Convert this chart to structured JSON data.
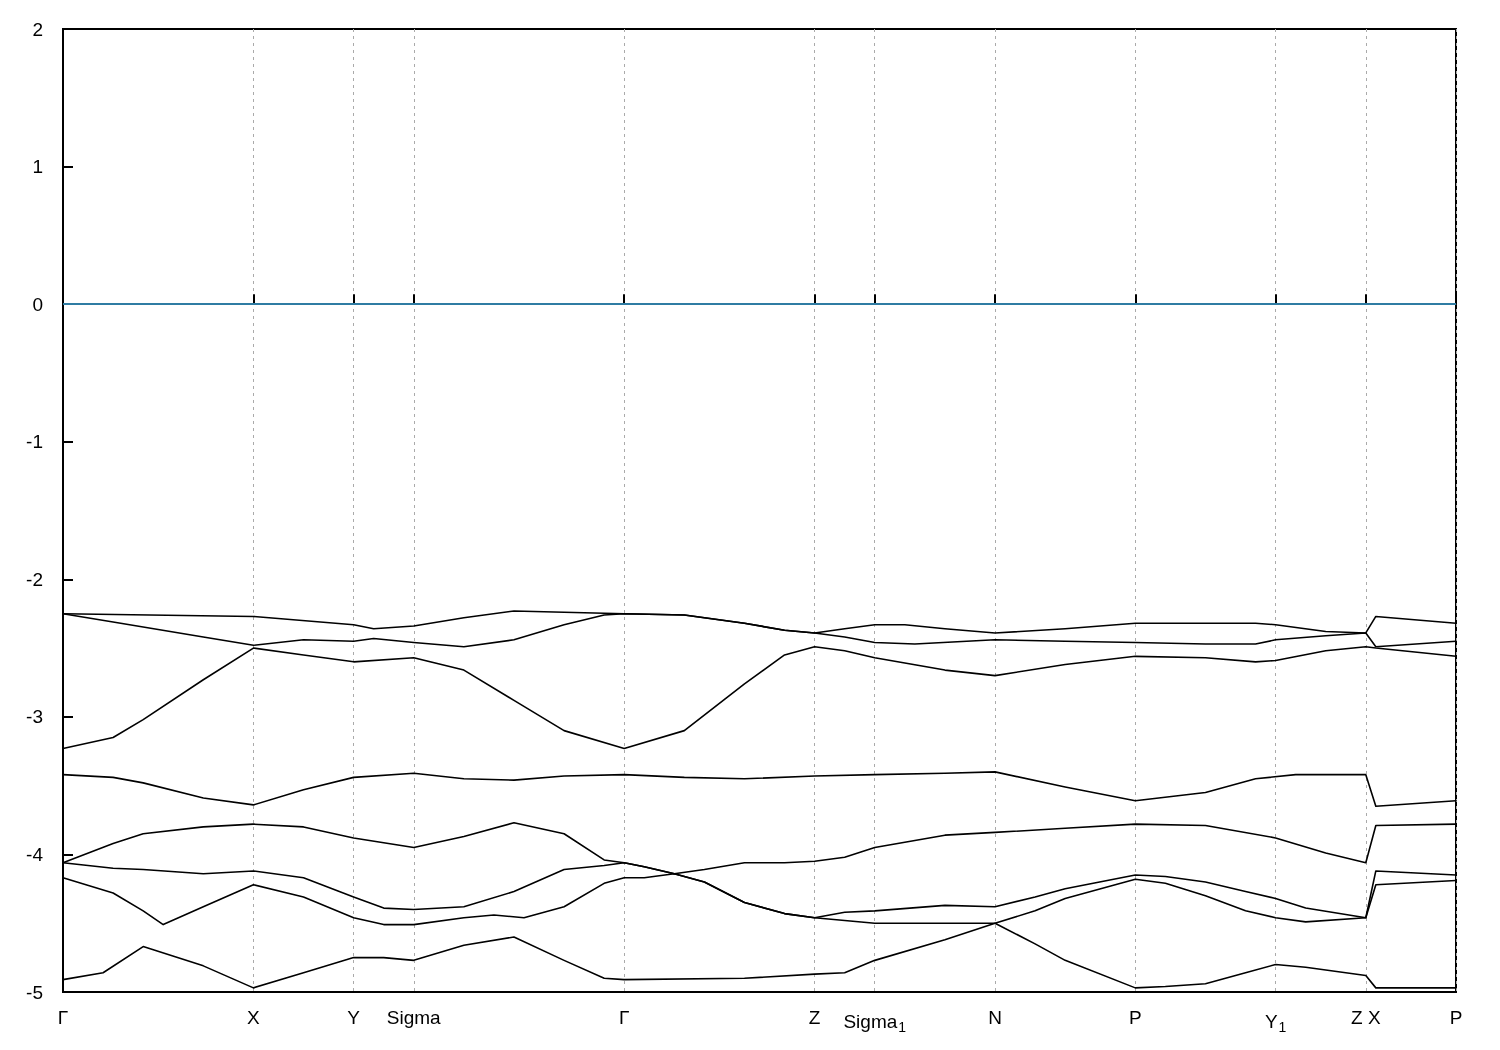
{
  "chart_data": {
    "type": "line",
    "ylim": [
      -5,
      2
    ],
    "categories": [
      "Γ",
      null,
      null,
      null,
      null,
      null,
      null,
      null,
      null,
      null,
      null,
      null,
      null,
      null,
      null,
      null,
      null,
      null,
      null,
      "X",
      null,
      null,
      null,
      null,
      null,
      null,
      null,
      null,
      null,
      "Y",
      null,
      null,
      null,
      null,
      null,
      "Sigma",
      null,
      null,
      null,
      null,
      null,
      null,
      null,
      null,
      null,
      null,
      null,
      null,
      null,
      null,
      null,
      null,
      null,
      null,
      null,
      null,
      "Γ",
      null,
      null,
      null,
      null,
      null,
      null,
      null,
      null,
      null,
      null,
      null,
      null,
      null,
      null,
      null,
      null,
      null,
      null,
      "Z",
      null,
      null,
      null,
      null,
      null,
      "Sigma$_{1}$",
      null,
      null,
      null,
      null,
      null,
      null,
      null,
      null,
      null,
      null,
      null,
      "N",
      null,
      null,
      null,
      null,
      null,
      null,
      null,
      null,
      null,
      null,
      null,
      null,
      null,
      "P",
      null,
      null,
      null,
      null,
      null,
      null,
      null,
      null,
      null,
      null,
      null,
      null,
      null,
      "Y$_{1}$",
      null,
      null,
      null,
      null,
      null,
      null,
      null,
      null,
      "Z X",
      null,
      null,
      null,
      null,
      null,
      null,
      null,
      null,
      "P"
    ],
    "yticks": [
      -5,
      -4,
      -3,
      -2,
      -1,
      0,
      1,
      2
    ],
    "grid": "x",
    "marker": "none",
    "line_style": "solid",
    "ref_lines": [
      {
        "axis": "y",
        "value": 0,
        "color": "#3fa6da"
      }
    ],
    "series": [
      {
        "color": "#000000",
        "values": [
          -2.25,
          null,
          null,
          null,
          null,
          null,
          null,
          null,
          null,
          null,
          null,
          null,
          null,
          null,
          null,
          null,
          null,
          null,
          null,
          -2.27,
          null,
          null,
          null,
          null,
          null,
          null,
          null,
          null,
          null,
          -2.33,
          null,
          -2.36,
          null,
          null,
          null,
          -2.34,
          null,
          null,
          null,
          null,
          -2.28,
          null,
          null,
          null,
          null,
          -2.23,
          null,
          null,
          null,
          null,
          -2.24,
          null,
          null,
          null,
          null,
          null,
          -2.25,
          null,
          null,
          null,
          null,
          null,
          -2.26,
          null,
          null,
          null,
          null,
          null,
          -2.32,
          null,
          null,
          null,
          -2.37,
          null,
          null,
          -2.39,
          null,
          null,
          -2.36,
          null,
          null,
          -2.33,
          null,
          null,
          -2.33,
          null,
          null,
          null,
          -2.36,
          null,
          null,
          null,
          null,
          -2.39,
          null,
          null,
          null,
          null,
          null,
          null,
          -2.36,
          null,
          null,
          null,
          null,
          null,
          null,
          -2.32,
          null,
          null,
          null,
          null,
          null,
          null,
          -2.32,
          null,
          null,
          null,
          null,
          -2.32,
          null,
          -2.33,
          null,
          null,
          null,
          null,
          -2.38,
          null,
          null,
          null,
          -2.39,
          -2.27,
          null,
          null,
          null,
          null,
          null,
          null,
          null,
          -2.32
        ]
      },
      {
        "color": "#000000",
        "values": [
          -2.25,
          null,
          null,
          null,
          null,
          -2.31,
          null,
          null,
          null,
          null,
          null,
          null,
          null,
          null,
          -2.42,
          null,
          null,
          null,
          null,
          -2.48,
          null,
          null,
          null,
          null,
          -2.44,
          null,
          null,
          null,
          null,
          -2.45,
          null,
          -2.43,
          null,
          null,
          null,
          -2.46,
          null,
          null,
          null,
          null,
          -2.49,
          null,
          null,
          null,
          null,
          -2.44,
          null,
          null,
          null,
          null,
          -2.33,
          null,
          null,
          null,
          -2.26,
          null,
          -2.25,
          null,
          null,
          null,
          null,
          null,
          -2.26,
          null,
          null,
          null,
          null,
          null,
          -2.32,
          null,
          null,
          null,
          -2.37,
          null,
          null,
          -2.39,
          null,
          null,
          -2.42,
          null,
          null,
          -2.46,
          null,
          null,
          null,
          -2.47,
          null,
          null,
          null,
          null,
          null,
          null,
          null,
          -2.44,
          null,
          null,
          null,
          null,
          null,
          null,
          -2.45,
          null,
          null,
          null,
          null,
          null,
          null,
          -2.46,
          null,
          null,
          null,
          null,
          null,
          null,
          -2.47,
          null,
          null,
          null,
          null,
          -2.47,
          null,
          -2.44,
          null,
          null,
          null,
          null,
          -2.41,
          null,
          null,
          null,
          -2.39,
          -2.49,
          null,
          null,
          null,
          null,
          null,
          null,
          null,
          -2.45
        ]
      },
      {
        "color": "#000000",
        "values": [
          -3.23,
          null,
          null,
          null,
          null,
          -3.15,
          null,
          null,
          -3.02,
          null,
          null,
          null,
          null,
          null,
          -2.73,
          null,
          null,
          null,
          null,
          -2.5,
          null,
          null,
          null,
          null,
          -2.55,
          null,
          null,
          null,
          null,
          -2.6,
          null,
          null,
          null,
          null,
          null,
          -2.57,
          null,
          null,
          null,
          null,
          -2.66,
          null,
          null,
          null,
          null,
          -2.88,
          null,
          null,
          null,
          null,
          -3.1,
          null,
          null,
          null,
          null,
          null,
          -3.23,
          null,
          null,
          null,
          null,
          null,
          -3.1,
          null,
          null,
          null,
          null,
          null,
          -2.76,
          null,
          null,
          null,
          -2.55,
          null,
          null,
          -2.49,
          null,
          null,
          -2.52,
          null,
          null,
          -2.57,
          null,
          null,
          null,
          null,
          null,
          null,
          -2.66,
          null,
          null,
          null,
          null,
          -2.7,
          null,
          null,
          null,
          null,
          null,
          null,
          -2.62,
          null,
          null,
          null,
          null,
          null,
          null,
          -2.56,
          null,
          null,
          null,
          null,
          null,
          null,
          -2.57,
          null,
          null,
          null,
          null,
          -2.6,
          null,
          -2.59,
          null,
          null,
          null,
          null,
          -2.52,
          null,
          null,
          null,
          -2.49,
          -2.5,
          null,
          null,
          null,
          null,
          null,
          null,
          null,
          -2.56
        ]
      },
      {
        "color": "#000000",
        "values": [
          -3.42,
          null,
          null,
          null,
          null,
          -3.44,
          null,
          null,
          -3.48,
          null,
          null,
          null,
          null,
          null,
          -3.59,
          null,
          null,
          null,
          null,
          -3.64,
          null,
          null,
          null,
          null,
          -3.53,
          null,
          null,
          null,
          null,
          -3.44,
          null,
          null,
          null,
          null,
          null,
          -3.41,
          null,
          null,
          null,
          null,
          -3.45,
          null,
          null,
          null,
          null,
          -3.46,
          null,
          null,
          null,
          null,
          -3.43,
          null,
          null,
          null,
          null,
          null,
          -3.42,
          null,
          null,
          null,
          null,
          null,
          -3.44,
          null,
          null,
          null,
          null,
          null,
          -3.45,
          null,
          null,
          null,
          null,
          null,
          null,
          -3.43,
          null,
          null,
          null,
          null,
          null,
          -3.42,
          null,
          null,
          null,
          null,
          null,
          null,
          -3.41,
          null,
          null,
          null,
          null,
          -3.4,
          null,
          null,
          null,
          null,
          null,
          null,
          -3.51,
          null,
          null,
          null,
          null,
          null,
          null,
          -3.61,
          null,
          null,
          null,
          null,
          null,
          null,
          -3.55,
          null,
          null,
          null,
          null,
          -3.45,
          null,
          null,
          null,
          -3.42,
          null,
          null,
          null,
          null,
          null,
          null,
          -3.42,
          -3.65,
          null,
          null,
          null,
          null,
          null,
          null,
          null,
          -3.61
        ]
      },
      {
        "color": "#000000",
        "values": [
          -4.06,
          null,
          null,
          null,
          null,
          -3.92,
          null,
          null,
          -3.85,
          null,
          null,
          null,
          null,
          null,
          -3.8,
          null,
          null,
          null,
          null,
          -3.78,
          null,
          null,
          null,
          null,
          -3.8,
          null,
          null,
          null,
          null,
          -3.88,
          null,
          null,
          null,
          null,
          null,
          -3.95,
          null,
          null,
          null,
          null,
          -3.87,
          null,
          null,
          null,
          null,
          -3.77,
          null,
          null,
          null,
          null,
          -3.85,
          null,
          null,
          null,
          -4.04,
          null,
          -4.06,
          null,
          -4.09,
          null,
          null,
          -4.14,
          null,
          null,
          -4.11,
          null,
          null,
          null,
          -4.06,
          null,
          null,
          null,
          -4.06,
          null,
          null,
          -4.05,
          null,
          null,
          -4.02,
          null,
          null,
          -3.95,
          null,
          null,
          null,
          null,
          null,
          null,
          -3.86,
          null,
          null,
          null,
          null,
          -3.84,
          null,
          null,
          null,
          null,
          null,
          null,
          -3.81,
          null,
          null,
          null,
          null,
          null,
          null,
          -3.78,
          null,
          null,
          null,
          null,
          null,
          null,
          -3.79,
          null,
          null,
          null,
          null,
          null,
          null,
          -3.88,
          null,
          null,
          null,
          null,
          -3.99,
          null,
          null,
          null,
          -4.06,
          -3.79,
          null,
          null,
          null,
          null,
          null,
          null,
          null,
          -3.78
        ]
      },
      {
        "color": "#000000",
        "values": [
          -4.06,
          null,
          null,
          null,
          null,
          -4.1,
          null,
          null,
          -4.11,
          null,
          null,
          null,
          null,
          null,
          -4.14,
          null,
          null,
          null,
          null,
          -4.12,
          null,
          null,
          null,
          null,
          -4.17,
          null,
          null,
          null,
          null,
          -4.31,
          null,
          null,
          -4.39,
          null,
          null,
          -4.4,
          null,
          null,
          null,
          null,
          -4.38,
          null,
          null,
          null,
          null,
          -4.27,
          null,
          null,
          null,
          null,
          -4.11,
          null,
          null,
          null,
          -4.08,
          null,
          -4.06,
          null,
          -4.09,
          null,
          null,
          -4.14,
          null,
          null,
          -4.2,
          null,
          null,
          null,
          -4.35,
          null,
          null,
          null,
          -4.43,
          null,
          null,
          -4.46,
          null,
          null,
          -4.42,
          null,
          null,
          -4.41,
          null,
          null,
          null,
          null,
          null,
          null,
          -4.37,
          null,
          null,
          null,
          null,
          -4.38,
          null,
          null,
          null,
          -4.31,
          null,
          null,
          -4.25,
          null,
          null,
          null,
          null,
          null,
          null,
          -4.15,
          null,
          null,
          -4.16,
          null,
          null,
          null,
          -4.2,
          null,
          null,
          null,
          -4.27,
          null,
          null,
          -4.32,
          null,
          null,
          -4.39,
          null,
          null,
          null,
          null,
          null,
          -4.46,
          -4.12,
          null,
          null,
          null,
          null,
          null,
          null,
          null,
          -4.15
        ]
      },
      {
        "color": "#000000",
        "values": [
          -4.17,
          null,
          null,
          null,
          null,
          -4.28,
          null,
          null,
          -4.41,
          null,
          -4.51,
          null,
          null,
          null,
          -4.38,
          null,
          null,
          null,
          null,
          -4.22,
          null,
          null,
          null,
          null,
          -4.31,
          null,
          null,
          null,
          null,
          -4.46,
          null,
          null,
          -4.51,
          null,
          null,
          -4.51,
          null,
          null,
          null,
          null,
          -4.46,
          null,
          null,
          -4.44,
          null,
          null,
          -4.46,
          null,
          null,
          null,
          -4.38,
          null,
          null,
          null,
          -4.21,
          null,
          -4.17,
          null,
          -4.17,
          null,
          null,
          -4.14,
          null,
          null,
          -4.2,
          null,
          null,
          null,
          -4.35,
          null,
          null,
          null,
          -4.43,
          null,
          null,
          -4.46,
          null,
          null,
          -4.48,
          null,
          null,
          -4.5,
          null,
          null,
          null,
          null,
          null,
          null,
          -4.5,
          null,
          null,
          null,
          null,
          -4.5,
          null,
          null,
          null,
          -4.41,
          null,
          null,
          -4.32,
          null,
          null,
          null,
          null,
          null,
          null,
          -4.18,
          null,
          null,
          -4.21,
          null,
          null,
          null,
          -4.3,
          null,
          null,
          null,
          -4.41,
          null,
          null,
          -4.46,
          null,
          null,
          -4.49,
          null,
          null,
          null,
          null,
          null,
          -4.46,
          -4.22,
          null,
          null,
          null,
          null,
          null,
          null,
          null,
          -4.19
        ]
      },
      {
        "color": "#000000",
        "values": [
          -4.91,
          null,
          null,
          null,
          -4.86,
          null,
          null,
          null,
          -4.67,
          null,
          null,
          null,
          null,
          null,
          -4.81,
          null,
          null,
          null,
          null,
          -4.97,
          null,
          null,
          null,
          null,
          -4.86,
          null,
          null,
          null,
          null,
          -4.75,
          null,
          null,
          -4.75,
          null,
          null,
          -4.77,
          null,
          null,
          null,
          null,
          -4.66,
          null,
          null,
          null,
          null,
          -4.6,
          null,
          null,
          null,
          null,
          -4.77,
          null,
          null,
          null,
          -4.9,
          null,
          -4.91,
          null,
          null,
          null,
          null,
          null,
          null,
          null,
          null,
          null,
          null,
          null,
          -4.9,
          null,
          null,
          null,
          null,
          null,
          null,
          -4.87,
          null,
          null,
          -4.86,
          null,
          null,
          -4.77,
          null,
          null,
          null,
          null,
          null,
          null,
          -4.62,
          null,
          null,
          null,
          null,
          -4.5,
          null,
          null,
          null,
          -4.65,
          null,
          null,
          -4.77,
          null,
          null,
          null,
          null,
          null,
          null,
          -4.97,
          null,
          null,
          -4.96,
          null,
          null,
          null,
          -4.94,
          null,
          null,
          null,
          -4.86,
          null,
          null,
          -4.8,
          null,
          null,
          -4.82,
          null,
          null,
          null,
          null,
          null,
          -4.88,
          -4.97,
          null,
          null,
          null,
          null,
          null,
          null,
          null,
          -4.97
        ]
      }
    ]
  }
}
